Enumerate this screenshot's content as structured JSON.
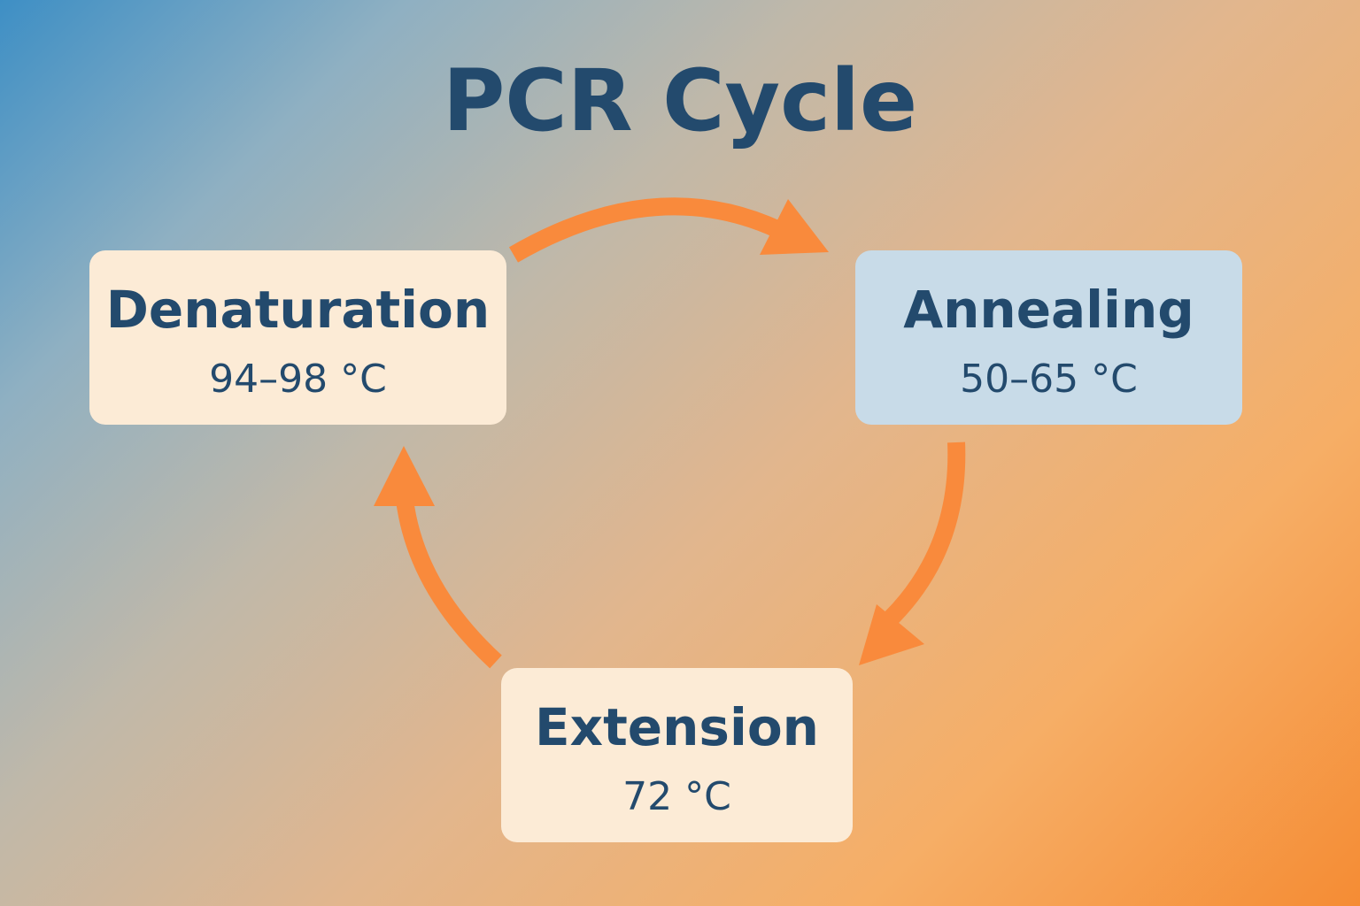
{
  "diagram": {
    "title": "PCR Cycle",
    "colors": {
      "title_text": "#234a6d",
      "arrow": "#f98a3c",
      "box_cream": "#fcebd6",
      "box_blue": "#c8dbe8"
    },
    "steps": [
      {
        "name": "Denaturation",
        "temperature": "94–98 °C"
      },
      {
        "name": "Annealing",
        "temperature": "50–65 °C"
      },
      {
        "name": "Extension",
        "temperature": "72 °C"
      }
    ],
    "arrows": [
      {
        "from": "Denaturation",
        "to": "Annealing",
        "icon": "curved-arrow-icon"
      },
      {
        "from": "Annealing",
        "to": "Extension",
        "icon": "curved-arrow-icon"
      },
      {
        "from": "Extension",
        "to": "Denaturation",
        "icon": "curved-arrow-icon"
      }
    ]
  }
}
